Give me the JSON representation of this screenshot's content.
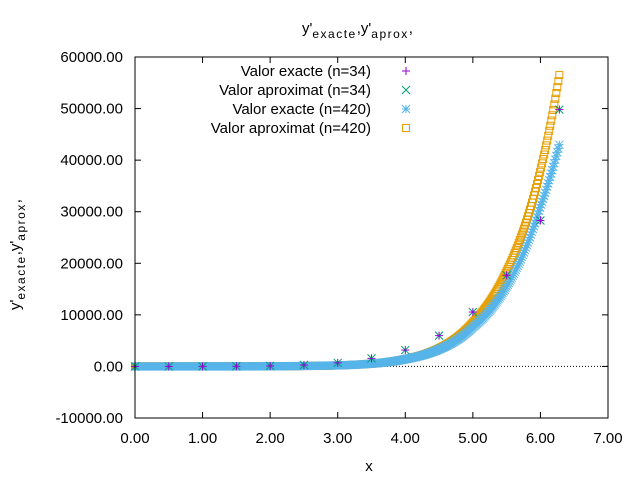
{
  "chart_data": {
    "type": "scatter",
    "title": {
      "base": "y'",
      "sub1": "exacte",
      "sep": ",y'",
      "sub2": "aprox",
      "tail": ","
    },
    "ylabel": {
      "base": "y'",
      "sub1": "exacte",
      "sep": ",y'",
      "sub2": "aprox",
      "tail": ","
    },
    "xlabel": "x",
    "xlim": [
      0,
      7
    ],
    "ylim": [
      -10000,
      60000
    ],
    "x_ticks": [
      "0.00",
      "1.00",
      "2.00",
      "3.00",
      "4.00",
      "5.00",
      "6.00",
      "7.00"
    ],
    "y_ticks": [
      "-10000.00",
      "0.00",
      "10000.00",
      "20000.00",
      "30000.00",
      "40000.00",
      "50000.00",
      "60000.00"
    ],
    "x_tick_values": [
      0,
      1,
      2,
      3,
      4,
      5,
      6,
      7
    ],
    "y_tick_values": [
      -10000,
      0,
      10000,
      20000,
      30000,
      40000,
      50000,
      60000
    ],
    "zero_line": true,
    "legend_position": "top-center",
    "series": [
      {
        "name": "Valor exacte (n=34)",
        "marker": "plus",
        "color": "#9400d3",
        "points": [
          [
            0.0,
            0
          ],
          [
            0.5,
            1
          ],
          [
            1.0,
            7
          ],
          [
            1.5,
            30
          ],
          [
            2.0,
            100
          ],
          [
            2.5,
            280
          ],
          [
            3.0,
            700
          ],
          [
            3.5,
            1560
          ],
          [
            4.0,
            3170
          ],
          [
            4.5,
            5970
          ],
          [
            5.0,
            10550
          ],
          [
            5.5,
            17680
          ],
          [
            6.0,
            28300
          ],
          [
            6.28,
            49800
          ]
        ]
      },
      {
        "name": "Valor aproximat (n=34)",
        "marker": "cross",
        "color": "#009e73",
        "points": [
          [
            0.0,
            0
          ],
          [
            0.5,
            1
          ],
          [
            1.0,
            7
          ],
          [
            1.5,
            30
          ],
          [
            2.0,
            100
          ],
          [
            2.5,
            280
          ],
          [
            3.0,
            700
          ],
          [
            3.5,
            1560
          ],
          [
            4.0,
            3170
          ],
          [
            4.5,
            5970
          ],
          [
            5.0,
            10550
          ],
          [
            5.5,
            17680
          ],
          [
            6.0,
            28300
          ],
          [
            6.28,
            49800
          ]
        ]
      },
      {
        "name": "Valor exacte (n=420)",
        "marker": "star",
        "color": "#56b4e9",
        "x_range": [
          0,
          6.28
        ],
        "count": 420,
        "func": "exacte",
        "points": [
          [
            0.0,
            0
          ],
          [
            3.0,
            200
          ],
          [
            4.0,
            1400
          ],
          [
            4.5,
            3300
          ],
          [
            5.0,
            7600
          ],
          [
            5.5,
            15500
          ],
          [
            6.0,
            31000
          ],
          [
            6.28,
            43000
          ]
        ]
      },
      {
        "name": "Valor aproximat (n=420)",
        "marker": "square",
        "color": "#e69f00",
        "x_range": [
          0,
          6.28
        ],
        "count": 420,
        "func": "aproximat",
        "points": [
          [
            0.0,
            0
          ],
          [
            3.0,
            200
          ],
          [
            4.0,
            1400
          ],
          [
            4.5,
            3500
          ],
          [
            5.0,
            8500
          ],
          [
            5.5,
            18500
          ],
          [
            6.0,
            38000
          ],
          [
            6.28,
            56500
          ]
        ]
      }
    ]
  }
}
